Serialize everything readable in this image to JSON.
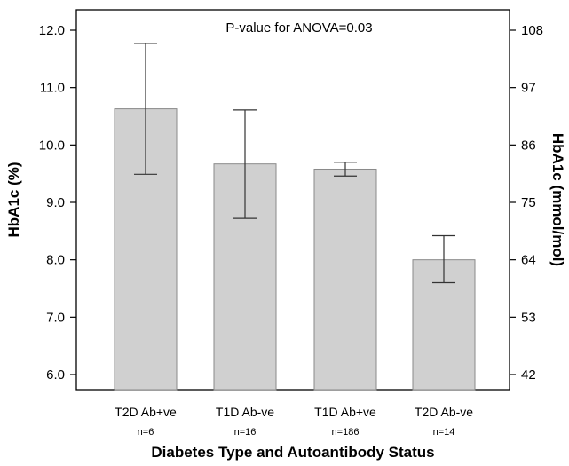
{
  "chart_data": {
    "type": "bar",
    "title": "",
    "annotation": "P-value for ANOVA=0.03",
    "xlabel": "Diabetes Type and Autoantibody Status",
    "ylabel": "HbA1c (%)",
    "ylabel_right": "HbA1c (mmol/mol)",
    "categories": [
      "T2D Ab+ve",
      "T1D Ab-ve",
      "T1D Ab+ve",
      "T2D Ab-ve"
    ],
    "sample_sizes": [
      "n=6",
      "n=16",
      "n=186",
      "n=14"
    ],
    "values": [
      10.63,
      9.67,
      9.58,
      8.0
    ],
    "error_bars": [
      {
        "low": 9.49,
        "high": 11.77
      },
      {
        "low": 8.72,
        "high": 10.61
      },
      {
        "low": 9.46,
        "high": 9.7
      },
      {
        "low": 7.6,
        "high": 8.42
      }
    ],
    "ylim": [
      5.8,
      12.3
    ],
    "yticks": [
      6.0,
      7.0,
      8.0,
      9.0,
      10.0,
      11.0,
      12.0
    ],
    "ytick_labels": [
      "6.0",
      "7.0",
      "8.0",
      "9.0",
      "10.0",
      "11.0",
      "12.0"
    ],
    "right_ticks": [
      42,
      53,
      64,
      75,
      86,
      97,
      108
    ],
    "right_tick_labels": [
      "42",
      "53",
      "64",
      "75",
      "86",
      "97",
      "108"
    ],
    "right_tick_positions_pct": [
      6.0,
      7.0,
      8.0,
      9.0,
      10.0,
      11.0,
      12.0
    ],
    "grid": false,
    "colors": {
      "bar_fill": "#d0d0d0",
      "bar_stroke": "#8a8a8a",
      "axis": "#000000"
    }
  }
}
